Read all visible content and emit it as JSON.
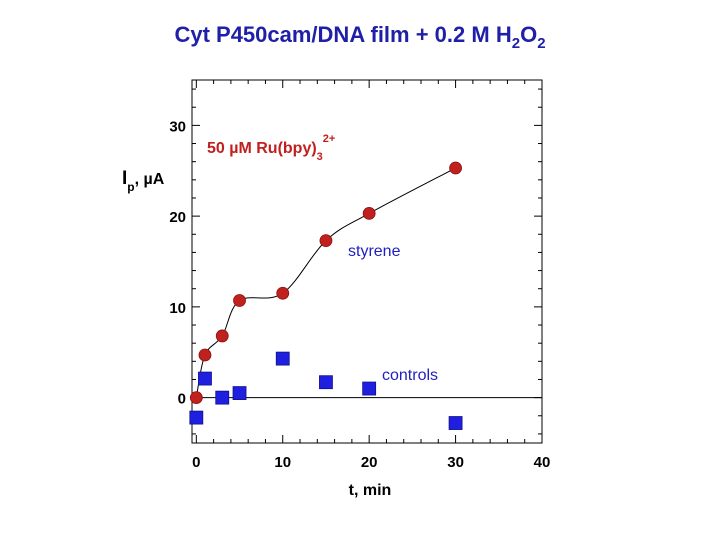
{
  "chart_data": {
    "type": "scatter",
    "title": {
      "main": "Cyt P450cam/DNA film + 0.2 M H",
      "sub1": "2",
      "mid": "O",
      "sub2": "2"
    },
    "xlabel": "t, min",
    "ylabel": {
      "main": "I",
      "sub": "p",
      "rest": ",  µA"
    },
    "xlim": [
      -0.5,
      40
    ],
    "ylim": [
      -5,
      35
    ],
    "x_ticks": [
      0,
      10,
      20,
      30,
      40
    ],
    "y_ticks": [
      0,
      10,
      20,
      30
    ],
    "x_tick_labels": [
      "0",
      "10",
      "20",
      "30",
      "40"
    ],
    "y_tick_labels": [
      "0",
      "10",
      "20",
      "30"
    ],
    "grid": false,
    "zero_line": true,
    "series": [
      {
        "name": "styrene",
        "color": "#c0201e",
        "marker": "circle",
        "connect": "smooth",
        "x": [
          0,
          1,
          3,
          5,
          10,
          15,
          20,
          30
        ],
        "y": [
          0,
          4.7,
          6.8,
          10.7,
          11.5,
          17.3,
          20.3,
          25.3
        ]
      },
      {
        "name": "controls",
        "color": "#1f1fdf",
        "marker": "square",
        "connect": "none",
        "x": [
          0,
          1,
          3,
          5,
          10,
          15,
          20,
          30
        ],
        "y": [
          -2.2,
          2.1,
          0,
          0.5,
          4.3,
          1.7,
          1.0,
          -2.8
        ]
      }
    ],
    "annotations": {
      "ru": {
        "main": "50 µM Ru(bpy)",
        "sub": "3",
        "sup": "2+"
      },
      "styrene": "styrene",
      "controls": "controls"
    }
  }
}
